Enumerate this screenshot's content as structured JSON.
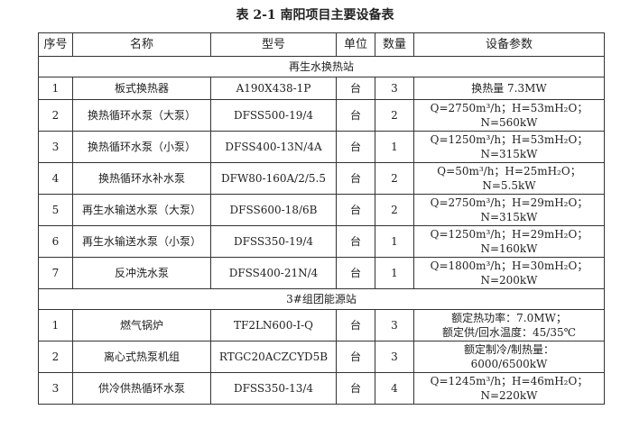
{
  "title": "表 2-1  南阳项目主要设备表",
  "headers": [
    "序号",
    "名称",
    "型号",
    "单位",
    "数量",
    "设备参数"
  ],
  "sections": [
    {
      "name": "再生水换热站",
      "rows": [
        [
          "1",
          "板式换热器",
          "A190X438-1P",
          "台",
          "3",
          "换热量 7.3MW",
          ""
        ],
        [
          "2",
          "换热循环水泵（大泵）",
          "DFSS500-19/4",
          "台",
          "2",
          "Q=2750m³/h；H=53mH₂O；",
          "N=560kW"
        ],
        [
          "3",
          "换热循环水泵（小泵）",
          "DFSS400-13N/4A",
          "台",
          "1",
          "Q=1250m³/h；H=53mH₂O；",
          "N=315kW"
        ],
        [
          "4",
          "换热循环水补水泵",
          "DFW80-160A/2/5.5",
          "台",
          "2",
          "Q=50m³/h；H=25mH₂O；",
          "N=5.5kW"
        ],
        [
          "5",
          "再生水输送水泵（大泵）",
          "DFSS600-18/6B",
          "台",
          "2",
          "Q=2750m³/h；H=29mH₂O；",
          "N=315kW"
        ],
        [
          "6",
          "再生水输送水泵（小泵）",
          "DFSS350-19/4",
          "台",
          "1",
          "Q=1250m³/h；H=29mH₂O；",
          "N=160kW"
        ],
        [
          "7",
          "反冲洗水泵",
          "DFSS400-21N/4",
          "台",
          "1",
          "Q=1800m³/h；H=30mH₂O；",
          "N=200kW"
        ]
      ]
    },
    {
      "name": "3#组团能源站",
      "rows": [
        [
          "1",
          "燃气锅炉",
          "TF2LN600-I-Q",
          "台",
          "3",
          "额定热功率：7.0MW；",
          "额定供/回水温度：45/35℃"
        ],
        [
          "2",
          "离心式热泵机组",
          "RTGC20ACZCYD5B",
          "台",
          "3",
          "额定制冷/制热量：",
          "6000/6500kW"
        ],
        [
          "3",
          "供冷供热循环水泵",
          "DFSS350-13/4",
          "台",
          "4",
          "Q=1245m³/h；H=46mH₂O；",
          "N=220kW"
        ]
      ]
    }
  ]
}
